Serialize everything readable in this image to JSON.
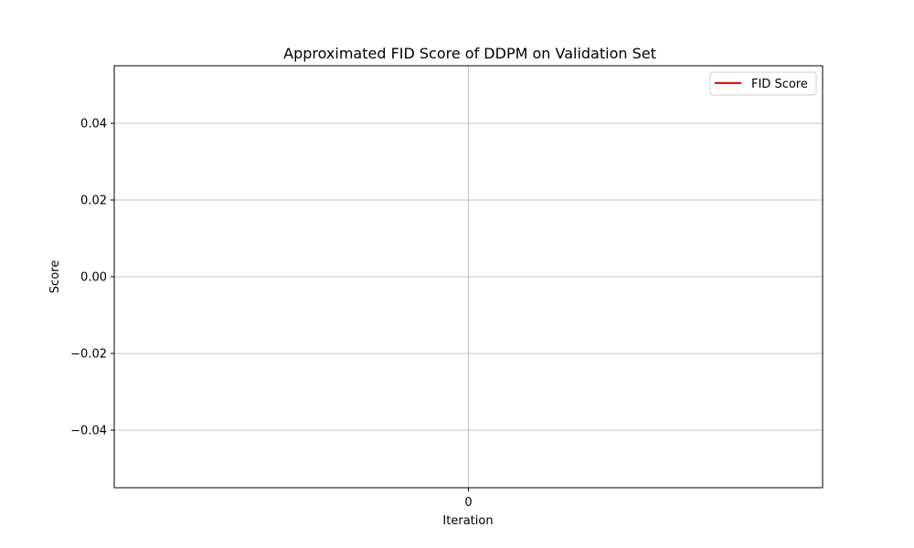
{
  "chart_data": {
    "type": "line",
    "title": "Approximated FID Score of DDPM on Validation Set",
    "xlabel": "Iteration",
    "ylabel": "Score",
    "xlim": [
      -0.055,
      0.055
    ],
    "ylim": [
      -0.055,
      0.055
    ],
    "x_ticks": [
      0
    ],
    "x_tick_labels": [
      "0"
    ],
    "y_ticks": [
      -0.04,
      -0.02,
      0.0,
      0.02,
      0.04
    ],
    "y_tick_labels": [
      "−0.04",
      "−0.02",
      "0.00",
      "0.02",
      "0.04"
    ],
    "grid": true,
    "legend_position": "top-right",
    "series": [
      {
        "name": "FID Score",
        "color": "#ff0000",
        "x": [],
        "y": []
      }
    ]
  }
}
